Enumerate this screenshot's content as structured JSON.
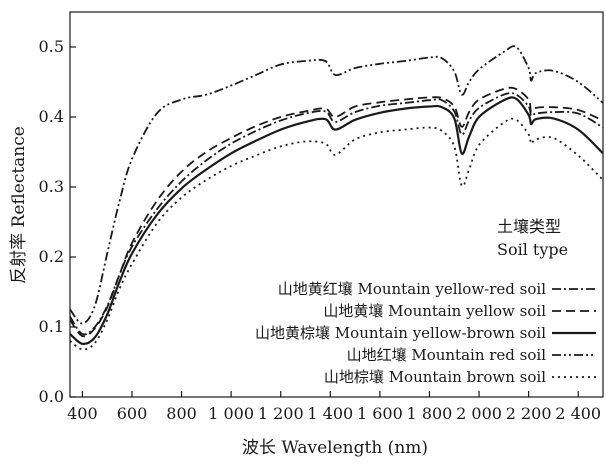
{
  "chart_data": {
    "type": "line",
    "xlabel": "波长 Wavelength (nm)",
    "ylabel": "反射率 Reflectance",
    "xlim": [
      350,
      2500
    ],
    "ylim": [
      0.0,
      0.55
    ],
    "x_ticks": [
      400,
      600,
      800,
      1000,
      1200,
      1400,
      1600,
      1800,
      2000,
      2200,
      2400
    ],
    "x_tick_labels": [
      "400",
      "600",
      "800",
      "1 000",
      "1 200",
      "1 400",
      "1 600",
      "1 800",
      "2 000",
      "2 200",
      "2 400"
    ],
    "y_ticks": [
      0.0,
      0.1,
      0.2,
      0.3,
      0.4,
      0.5
    ],
    "y_tick_labels": [
      "0.0",
      "0.1",
      "0.2",
      "0.3",
      "0.4",
      "0.5"
    ],
    "grid": false,
    "legend_placement": "bottom-right",
    "legend_title": [
      "土壤类型",
      "Soil type"
    ],
    "x": [
      350,
      400,
      450,
      500,
      550,
      600,
      700,
      800,
      900,
      1000,
      1100,
      1200,
      1300,
      1380,
      1420,
      1500,
      1600,
      1700,
      1800,
      1850,
      1900,
      1930,
      1960,
      2000,
      2100,
      2150,
      2200,
      2210,
      2230,
      2300,
      2400,
      2500
    ],
    "series": [
      {
        "name": "山地黄红壤 Mountain yellow-red soil",
        "style": "dash-dot",
        "values": [
          0.115,
          0.09,
          0.1,
          0.13,
          0.175,
          0.215,
          0.268,
          0.308,
          0.338,
          0.362,
          0.38,
          0.395,
          0.405,
          0.408,
          0.393,
          0.407,
          0.416,
          0.42,
          0.424,
          0.424,
          0.408,
          0.375,
          0.395,
          0.413,
          0.432,
          0.432,
          0.415,
          0.402,
          0.405,
          0.407,
          0.405,
          0.385
        ]
      },
      {
        "name": "山地黄壤 Mountain yellow soil",
        "style": "dash",
        "values": [
          0.11,
          0.087,
          0.098,
          0.128,
          0.175,
          0.22,
          0.28,
          0.322,
          0.35,
          0.37,
          0.387,
          0.4,
          0.408,
          0.412,
          0.4,
          0.415,
          0.421,
          0.425,
          0.428,
          0.427,
          0.415,
          0.386,
          0.407,
          0.425,
          0.44,
          0.44,
          0.425,
          0.408,
          0.413,
          0.414,
          0.41,
          0.395
        ]
      },
      {
        "name": "山地黄棕壤 Mountain yellow-brown soil",
        "style": "solid",
        "values": [
          0.09,
          0.076,
          0.085,
          0.118,
          0.165,
          0.205,
          0.26,
          0.298,
          0.325,
          0.348,
          0.366,
          0.382,
          0.393,
          0.397,
          0.382,
          0.396,
          0.406,
          0.412,
          0.415,
          0.414,
          0.398,
          0.348,
          0.372,
          0.4,
          0.424,
          0.426,
          0.403,
          0.39,
          0.397,
          0.398,
          0.382,
          0.348
        ]
      },
      {
        "name": "山地红壤 Mountain red soil",
        "style": "dash-dot-dot",
        "values": [
          0.125,
          0.105,
          0.13,
          0.205,
          0.28,
          0.34,
          0.405,
          0.425,
          0.432,
          0.445,
          0.46,
          0.475,
          0.48,
          0.48,
          0.46,
          0.47,
          0.476,
          0.48,
          0.485,
          0.484,
          0.465,
          0.432,
          0.45,
          0.468,
          0.493,
          0.5,
          0.47,
          0.452,
          0.463,
          0.466,
          0.45,
          0.42
        ]
      },
      {
        "name": "山地棕壤 Mountain brown soil",
        "style": "dot",
        "values": [
          0.08,
          0.068,
          0.077,
          0.11,
          0.155,
          0.19,
          0.248,
          0.285,
          0.31,
          0.33,
          0.345,
          0.358,
          0.365,
          0.362,
          0.346,
          0.368,
          0.378,
          0.382,
          0.385,
          0.38,
          0.358,
          0.302,
          0.325,
          0.36,
          0.392,
          0.396,
          0.375,
          0.362,
          0.368,
          0.37,
          0.345,
          0.31
        ]
      }
    ]
  }
}
